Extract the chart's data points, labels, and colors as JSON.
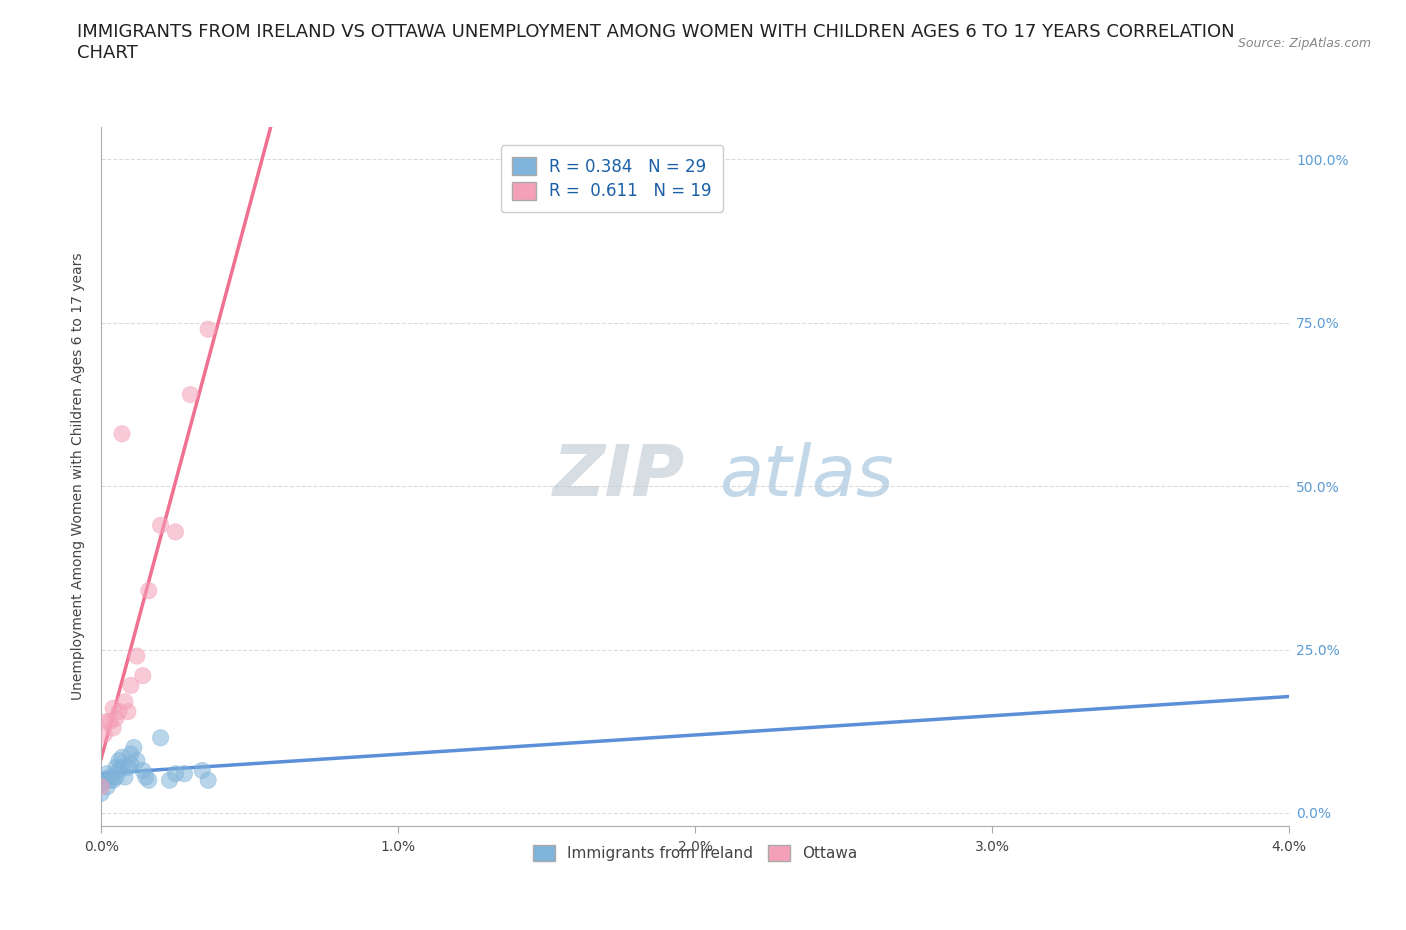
{
  "title": "IMMIGRANTS FROM IRELAND VS OTTAWA UNEMPLOYMENT AMONG WOMEN WITH CHILDREN AGES 6 TO 17 YEARS CORRELATION\nCHART",
  "source": "Source: ZipAtlas.com",
  "xlabel_ticks": [
    "0.0%",
    "1.0%",
    "2.0%",
    "3.0%",
    "4.0%"
  ],
  "ylabel_ticks": [
    "0.0%",
    "25.0%",
    "50.0%",
    "75.0%",
    "100.0%"
  ],
  "xlim": [
    0.0,
    0.04
  ],
  "ylim": [
    -0.02,
    1.05
  ],
  "legend_entries": [
    {
      "label": "R = 0.384   N = 29",
      "color": "#a8c4e0"
    },
    {
      "label": "R =  0.611   N = 19",
      "color": "#f4b8c8"
    }
  ],
  "legend_bottom": [
    "Immigrants from Ireland",
    "Ottawa"
  ],
  "watermark_top": "ZIP",
  "watermark_bot": "atlas",
  "ireland_scatter_x": [
    0.0,
    0.0,
    0.0001,
    0.0002,
    0.0002,
    0.0003,
    0.0003,
    0.0004,
    0.0005,
    0.0005,
    0.0006,
    0.0006,
    0.0007,
    0.0007,
    0.0008,
    0.0009,
    0.001,
    0.001,
    0.0011,
    0.0012,
    0.0014,
    0.0015,
    0.0016,
    0.002,
    0.0023,
    0.0025,
    0.0028,
    0.0034,
    0.0036
  ],
  "ireland_scatter_y": [
    0.03,
    0.045,
    0.05,
    0.04,
    0.06,
    0.05,
    0.055,
    0.05,
    0.055,
    0.07,
    0.065,
    0.08,
    0.07,
    0.085,
    0.055,
    0.07,
    0.09,
    0.075,
    0.1,
    0.08,
    0.065,
    0.055,
    0.05,
    0.115,
    0.05,
    0.06,
    0.06,
    0.065,
    0.05
  ],
  "ottawa_scatter_x": [
    0.0,
    0.0001,
    0.0002,
    0.0003,
    0.0004,
    0.0004,
    0.0005,
    0.0006,
    0.0007,
    0.0008,
    0.0009,
    0.001,
    0.0012,
    0.0014,
    0.0016,
    0.002,
    0.0025,
    0.003,
    0.0036
  ],
  "ottawa_scatter_y": [
    0.04,
    0.12,
    0.14,
    0.14,
    0.16,
    0.13,
    0.145,
    0.155,
    0.58,
    0.17,
    0.155,
    0.195,
    0.24,
    0.21,
    0.34,
    0.44,
    0.43,
    0.64,
    0.74
  ],
  "ireland_color": "#7fb3d9",
  "ottawa_color": "#f4a0b8",
  "ireland_line_color": "#5b8fd9",
  "ottawa_line_color": "#f07090",
  "grid_color": "#cccccc",
  "background_color": "#ffffff",
  "title_fontsize": 13,
  "axis_fontsize": 10,
  "R_ireland": 0.384,
  "R_ottawa": 0.611,
  "N_ireland": 29,
  "N_ottawa": 19
}
